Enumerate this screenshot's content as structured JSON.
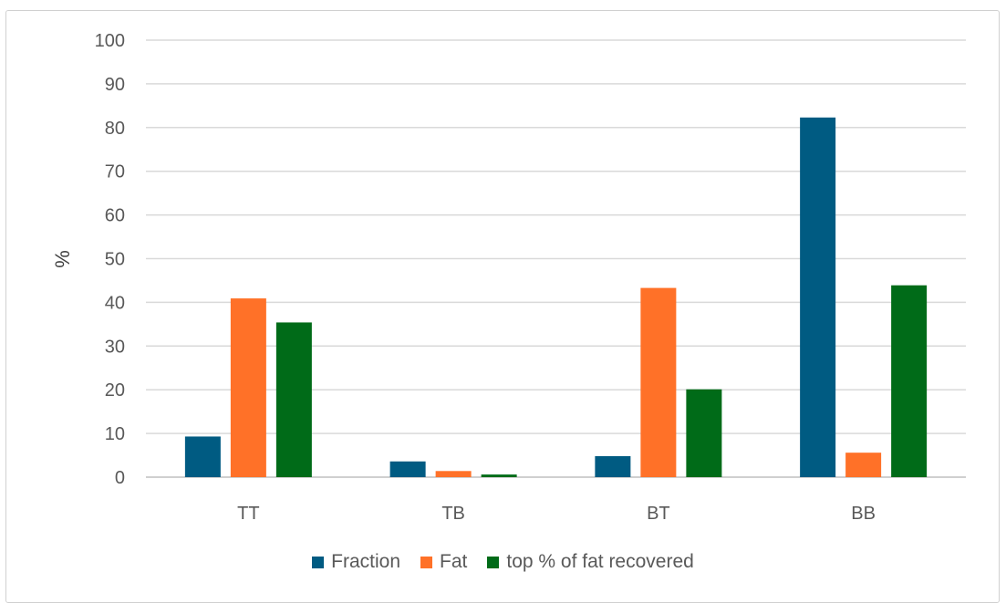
{
  "chart_data": {
    "type": "bar",
    "title": "",
    "xlabel": "",
    "ylabel": "%",
    "ylim": [
      0,
      100
    ],
    "yticks": [
      0,
      10,
      20,
      30,
      40,
      50,
      60,
      70,
      80,
      90,
      100
    ],
    "grid": true,
    "legend_position": "bottom",
    "categories": [
      "TT",
      "TB",
      "BT",
      "BB"
    ],
    "series": [
      {
        "name": "Fraction",
        "color": "#005b82",
        "values": [
          9.3,
          3.6,
          4.8,
          82.3
        ]
      },
      {
        "name": "Fat",
        "color": "#ff7128",
        "values": [
          40.9,
          1.4,
          43.3,
          5.6
        ]
      },
      {
        "name": "top % of fat recovered",
        "color": "#006b18",
        "values": [
          35.4,
          0.6,
          20.1,
          43.9
        ]
      }
    ]
  }
}
